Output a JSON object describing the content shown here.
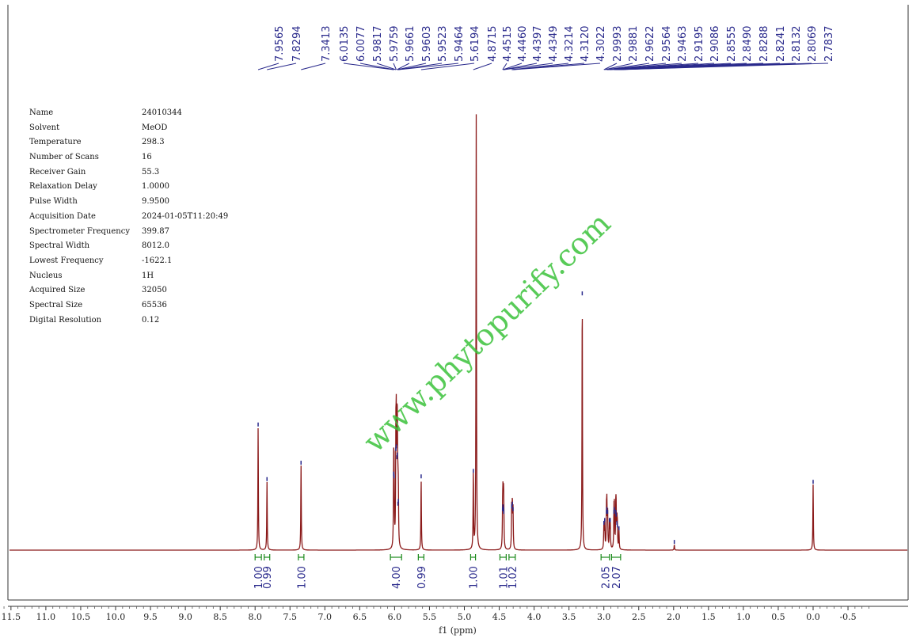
{
  "parameters": [
    {
      "name": "Name",
      "value": "24010344"
    },
    {
      "name": "Solvent",
      "value": "MeOD"
    },
    {
      "name": "Temperature",
      "value": "298.3"
    },
    {
      "name": "Number of Scans",
      "value": "16"
    },
    {
      "name": "Receiver Gain",
      "value": "55.3"
    },
    {
      "name": "Relaxation Delay",
      "value": "1.0000"
    },
    {
      "name": "Pulse Width",
      "value": "9.9500"
    },
    {
      "name": "Acquisition Date",
      "value": "2024-01-05T11:20:49"
    },
    {
      "name": "Spectrometer Frequency",
      "value": "399.87"
    },
    {
      "name": "Spectral Width",
      "value": "8012.0"
    },
    {
      "name": "Lowest Frequency",
      "value": "-1622.1"
    },
    {
      "name": "Nucleus",
      "value": "1H"
    },
    {
      "name": "Acquired Size",
      "value": "32050"
    },
    {
      "name": "Spectral Size",
      "value": "65536"
    },
    {
      "name": "Digital Resolution",
      "value": "0.12"
    }
  ],
  "watermark": "www.phytopurify.com",
  "colors": {
    "spectrum": "#8b1a1a",
    "peak_labels": "#2a2a8c",
    "integral": "#1a8a1a",
    "watermark": "#3cc23c"
  },
  "chart_data": {
    "type": "line",
    "xlabel": "f1 (ppm)",
    "xlim": [
      11.85,
      -0.85
    ],
    "x_reversed": true,
    "x_ticks": [
      "11.5",
      "11.0",
      "10.5",
      "10.0",
      "9.5",
      "9.0",
      "8.5",
      "8.0",
      "7.5",
      "7.0",
      "6.5",
      "6.0",
      "5.5",
      "5.0",
      "4.5",
      "4.0",
      "3.5",
      "3.0",
      "2.5",
      "2.0",
      "1.5",
      "1.0",
      "0.5",
      "0.0",
      "-0.5"
    ],
    "peak_labels": [
      "7.9565",
      "7.8294",
      "7.3413",
      "6.0135",
      "6.0077",
      "5.9817",
      "5.9759",
      "5.9661",
      "5.9603",
      "5.9523",
      "5.9464",
      "5.6194",
      "4.8715",
      "4.4515",
      "4.4460",
      "4.4397",
      "4.4349",
      "4.3214",
      "4.3120",
      "4.3022",
      "2.9993",
      "2.9881",
      "2.9622",
      "2.9564",
      "2.9463",
      "2.9195",
      "2.9086",
      "2.8555",
      "2.8490",
      "2.8288",
      "2.8241",
      "2.8132",
      "2.8069",
      "2.7837"
    ],
    "peaks": [
      {
        "ppm": 7.9565,
        "height": 0.45
      },
      {
        "ppm": 7.8294,
        "height": 0.25
      },
      {
        "ppm": 7.3413,
        "height": 0.31
      },
      {
        "ppm": 6.0135,
        "height": 0.27
      },
      {
        "ppm": 6.0077,
        "height": 0.26
      },
      {
        "ppm": 5.9817,
        "height": 0.36
      },
      {
        "ppm": 5.9759,
        "height": 0.37
      },
      {
        "ppm": 5.9661,
        "height": 0.33
      },
      {
        "ppm": 5.9603,
        "height": 0.34
      },
      {
        "ppm": 5.9523,
        "height": 0.16
      },
      {
        "ppm": 5.9464,
        "height": 0.17
      },
      {
        "ppm": 5.6194,
        "height": 0.26
      },
      {
        "ppm": 4.8715,
        "height": 0.28
      },
      {
        "ppm": 4.83,
        "height": 1.6
      },
      {
        "ppm": 4.4515,
        "height": 0.14
      },
      {
        "ppm": 4.446,
        "height": 0.15
      },
      {
        "ppm": 4.4397,
        "height": 0.14
      },
      {
        "ppm": 4.4349,
        "height": 0.13
      },
      {
        "ppm": 4.3214,
        "height": 0.15
      },
      {
        "ppm": 4.312,
        "height": 0.16
      },
      {
        "ppm": 4.3022,
        "height": 0.14
      },
      {
        "ppm": 3.31,
        "height": 0.93
      },
      {
        "ppm": 2.9993,
        "height": 0.09
      },
      {
        "ppm": 2.9881,
        "height": 0.1
      },
      {
        "ppm": 2.9622,
        "height": 0.13
      },
      {
        "ppm": 2.9564,
        "height": 0.14
      },
      {
        "ppm": 2.9463,
        "height": 0.13
      },
      {
        "ppm": 2.9195,
        "height": 0.1
      },
      {
        "ppm": 2.9086,
        "height": 0.1
      },
      {
        "ppm": 2.8555,
        "height": 0.13
      },
      {
        "ppm": 2.849,
        "height": 0.14
      },
      {
        "ppm": 2.8288,
        "height": 0.13
      },
      {
        "ppm": 2.8241,
        "height": 0.12
      },
      {
        "ppm": 2.8132,
        "height": 0.09
      },
      {
        "ppm": 2.8069,
        "height": 0.08
      },
      {
        "ppm": 2.7837,
        "height": 0.07
      },
      {
        "ppm": 1.99,
        "height": 0.02
      },
      {
        "ppm": 0.0,
        "height": 0.24
      }
    ],
    "integrals": [
      {
        "from": 8.0,
        "to": 7.91,
        "value": "1.00"
      },
      {
        "from": 7.87,
        "to": 7.79,
        "value": "0.99"
      },
      {
        "from": 7.38,
        "to": 7.3,
        "value": "1.00"
      },
      {
        "from": 6.06,
        "to": 5.9,
        "value": "4.00"
      },
      {
        "from": 5.66,
        "to": 5.58,
        "value": "0.99"
      },
      {
        "from": 4.91,
        "to": 4.84,
        "value": "1.00"
      },
      {
        "from": 4.49,
        "to": 4.4,
        "value": "1.01"
      },
      {
        "from": 4.36,
        "to": 4.27,
        "value": "1.02"
      },
      {
        "from": 3.04,
        "to": 2.92,
        "value": "2.05"
      },
      {
        "from": 2.89,
        "to": 2.76,
        "value": "2.07"
      }
    ]
  }
}
